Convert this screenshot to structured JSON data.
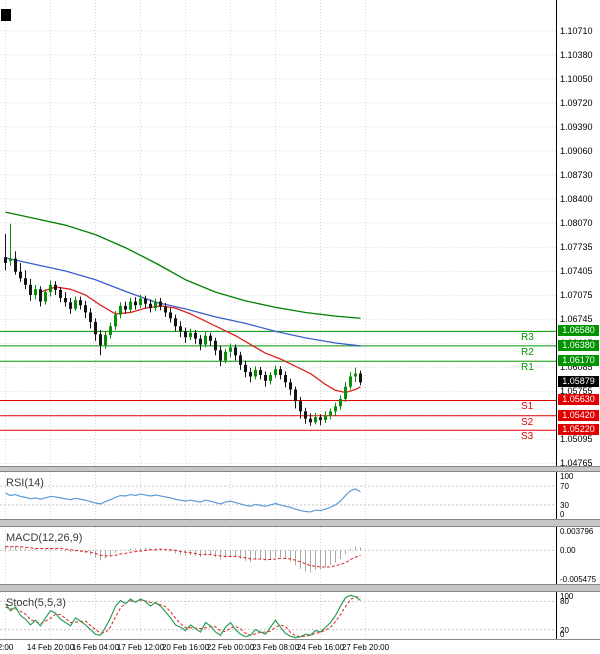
{
  "chart_data": {
    "type": "candlestick",
    "colors": {
      "background": "#ffffff",
      "grid": "#d9d9d9",
      "level_grid": "#c8c8c8",
      "axis_line": "#000000",
      "candle_up": "#0a8f0a",
      "candle_down": "#141414",
      "resistance": "#009500",
      "support": "#e00000",
      "current_badge": "#000000",
      "rsi_line": "#5b9bd5",
      "macd_hist": "#a8a8a8",
      "macd_signal": "#e02020",
      "stoch_k": "#2e9e5b",
      "stoch_d": "#e02020"
    },
    "price_axis": {
      "ylim": [
        1.04729,
        1.11136
      ],
      "ticks": [
        "1.10710",
        "1.10380",
        "1.10050",
        "1.09720",
        "1.09390",
        "1.09060",
        "1.08730",
        "1.08400",
        "1.08070",
        "1.07735",
        "1.07405",
        "1.07075",
        "1.06745",
        "1.06415",
        "1.06085",
        "1.05755",
        "1.05425",
        "1.05095",
        "1.04765"
      ]
    },
    "time_axis": {
      "labels": [
        "2:00",
        "14 Feb 20:00",
        "16 Feb 04:00",
        "17 Feb 12:00",
        "20 Feb 16:00",
        "22 Feb 00:00",
        "23 Feb 08:00",
        "24 Feb 16:00",
        "27 Feb 20:00"
      ],
      "indices": [
        0,
        9,
        18,
        27,
        36,
        45,
        54,
        63,
        72
      ]
    },
    "pivots": {
      "resistance": [
        {
          "name": "R3",
          "price": 1.0658,
          "display": "1.06580"
        },
        {
          "name": "R2",
          "price": 1.0638,
          "display": "1.06380"
        },
        {
          "name": "R1",
          "price": 1.0617,
          "display": "1.06170"
        }
      ],
      "support": [
        {
          "name": "S1",
          "price": 1.0563,
          "display": "1.05630"
        },
        {
          "name": "S2",
          "price": 1.0542,
          "display": "1.05420"
        },
        {
          "name": "S3",
          "price": 1.0522,
          "display": "1.05220"
        }
      ],
      "current": {
        "price": 1.05879,
        "display": "1.05879"
      }
    },
    "moving_averages": [
      {
        "name": "ma-slow-green",
        "color": "#008000",
        "points": [
          [
            0,
            1.0822
          ],
          [
            6,
            1.0813
          ],
          [
            12,
            1.0804
          ],
          [
            18,
            1.0791
          ],
          [
            24,
            1.0773
          ],
          [
            30,
            1.0752
          ],
          [
            36,
            1.0729
          ],
          [
            42,
            1.0712
          ],
          [
            48,
            1.07
          ],
          [
            54,
            1.0691
          ],
          [
            60,
            1.0684
          ],
          [
            66,
            1.0679
          ],
          [
            71,
            1.0676
          ]
        ]
      },
      {
        "name": "ma-mid-blue",
        "color": "#3a5fcd",
        "points": [
          [
            0,
            1.0759
          ],
          [
            6,
            1.075
          ],
          [
            12,
            1.0741
          ],
          [
            18,
            1.0729
          ],
          [
            24,
            1.0713
          ],
          [
            30,
            1.0698
          ],
          [
            36,
            1.0689
          ],
          [
            42,
            1.0678
          ],
          [
            48,
            1.0669
          ],
          [
            54,
            1.0658
          ],
          [
            60,
            1.0649
          ],
          [
            66,
            1.0642
          ],
          [
            71,
            1.0638
          ]
        ]
      },
      {
        "name": "ma-fast-red",
        "color": "#e02020",
        "points": [
          [
            7,
            1.0712
          ],
          [
            10,
            1.0719
          ],
          [
            13,
            1.0716
          ],
          [
            16,
            1.0708
          ],
          [
            19,
            1.0694
          ],
          [
            22,
            1.0682
          ],
          [
            25,
            1.0684
          ],
          [
            28,
            1.069
          ],
          [
            31,
            1.0693
          ],
          [
            34,
            1.069
          ],
          [
            37,
            1.0682
          ],
          [
            40,
            1.0672
          ],
          [
            43,
            1.0662
          ],
          [
            46,
            1.0652
          ],
          [
            49,
            1.064
          ],
          [
            52,
            1.0628
          ],
          [
            55,
            1.062
          ],
          [
            58,
            1.061
          ],
          [
            61,
            1.06
          ],
          [
            64,
            1.0585
          ],
          [
            66,
            1.0577
          ],
          [
            68,
            1.0574
          ],
          [
            70,
            1.0578
          ],
          [
            71,
            1.0582
          ]
        ]
      }
    ],
    "candles": [
      [
        1.076,
        1.0792,
        1.0742,
        1.0752
      ],
      [
        1.0755,
        1.0806,
        1.0748,
        1.0758
      ],
      [
        1.0758,
        1.0768,
        1.0736,
        1.074
      ],
      [
        1.074,
        1.0752,
        1.0726,
        1.0731
      ],
      [
        1.0731,
        1.0742,
        1.0716,
        1.0722
      ],
      [
        1.0722,
        1.073,
        1.07,
        1.0708
      ],
      [
        1.0708,
        1.0722,
        1.0702,
        1.0716
      ],
      [
        1.0716,
        1.072,
        1.0692,
        1.0699
      ],
      [
        1.0699,
        1.0716,
        1.0695,
        1.0712
      ],
      [
        1.0712,
        1.0728,
        1.0706,
        1.0722
      ],
      [
        1.0722,
        1.0727,
        1.0708,
        1.0715
      ],
      [
        1.0715,
        1.0719,
        1.0698,
        1.0704
      ],
      [
        1.0704,
        1.0712,
        1.0692,
        1.0698
      ],
      [
        1.0698,
        1.0704,
        1.0682,
        1.0689
      ],
      [
        1.0689,
        1.0706,
        1.0686,
        1.0701
      ],
      [
        1.0701,
        1.0706,
        1.0688,
        1.0694
      ],
      [
        1.0694,
        1.07,
        1.0676,
        1.0684
      ],
      [
        1.0684,
        1.069,
        1.0662,
        1.0671
      ],
      [
        1.0671,
        1.0676,
        1.0645,
        1.0654
      ],
      [
        1.0654,
        1.066,
        1.0625,
        1.0639
      ],
      [
        1.0639,
        1.0658,
        1.0634,
        1.0653
      ],
      [
        1.0653,
        1.067,
        1.0648,
        1.0665
      ],
      [
        1.0665,
        1.0686,
        1.066,
        1.0681
      ],
      [
        1.0681,
        1.0698,
        1.0676,
        1.0693
      ],
      [
        1.0693,
        1.0699,
        1.0682,
        1.0688
      ],
      [
        1.0688,
        1.0704,
        1.0684,
        1.0699
      ],
      [
        1.0699,
        1.0705,
        1.0688,
        1.0694
      ],
      [
        1.0694,
        1.0708,
        1.069,
        1.0703
      ],
      [
        1.0703,
        1.0707,
        1.069,
        1.0696
      ],
      [
        1.0696,
        1.0702,
        1.0684,
        1.069
      ],
      [
        1.069,
        1.0703,
        1.0686,
        1.0699
      ],
      [
        1.0699,
        1.0704,
        1.0687,
        1.0692
      ],
      [
        1.0692,
        1.0697,
        1.0678,
        1.0684
      ],
      [
        1.0684,
        1.069,
        1.067,
        1.0676
      ],
      [
        1.0676,
        1.0681,
        1.0658,
        1.0665
      ],
      [
        1.0665,
        1.0672,
        1.065,
        1.0658
      ],
      [
        1.0658,
        1.0663,
        1.0642,
        1.065
      ],
      [
        1.065,
        1.0662,
        1.0646,
        1.0656
      ],
      [
        1.0656,
        1.066,
        1.0641,
        1.0648
      ],
      [
        1.0648,
        1.0653,
        1.0632,
        1.064
      ],
      [
        1.064,
        1.0657,
        1.0636,
        1.0652
      ],
      [
        1.0652,
        1.0656,
        1.0638,
        1.0645
      ],
      [
        1.0645,
        1.0649,
        1.0625,
        1.0632
      ],
      [
        1.0632,
        1.0638,
        1.061,
        1.0618
      ],
      [
        1.0618,
        1.0634,
        1.0614,
        1.063
      ],
      [
        1.063,
        1.0641,
        1.0622,
        1.0636
      ],
      [
        1.0636,
        1.064,
        1.0618,
        1.0625
      ],
      [
        1.0625,
        1.063,
        1.0605,
        1.0612
      ],
      [
        1.0612,
        1.0618,
        1.0595,
        1.0602
      ],
      [
        1.0602,
        1.0608,
        1.0588,
        1.0596
      ],
      [
        1.0596,
        1.061,
        1.0592,
        1.0605
      ],
      [
        1.0605,
        1.0609,
        1.0592,
        1.0598
      ],
      [
        1.0598,
        1.0603,
        1.0582,
        1.059
      ],
      [
        1.059,
        1.0602,
        1.0585,
        1.0598
      ],
      [
        1.0598,
        1.0611,
        1.0594,
        1.0606
      ],
      [
        1.0606,
        1.061,
        1.0592,
        1.0598
      ],
      [
        1.0598,
        1.0603,
        1.0581,
        1.0588
      ],
      [
        1.0588,
        1.0593,
        1.057,
        1.0578
      ],
      [
        1.0578,
        1.0582,
        1.0552,
        1.0562
      ],
      [
        1.0562,
        1.0568,
        1.0538,
        1.0548
      ],
      [
        1.0548,
        1.0553,
        1.0531,
        1.0538
      ],
      [
        1.0538,
        1.0545,
        1.0528,
        1.0533
      ],
      [
        1.0533,
        1.0546,
        1.053,
        1.054
      ],
      [
        1.054,
        1.0544,
        1.0529,
        1.0536
      ],
      [
        1.0536,
        1.0548,
        1.0532,
        1.0542
      ],
      [
        1.0542,
        1.0552,
        1.0537,
        1.0548
      ],
      [
        1.0548,
        1.056,
        1.0542,
        1.0555
      ],
      [
        1.0555,
        1.057,
        1.055,
        1.0565
      ],
      [
        1.0565,
        1.0588,
        1.0561,
        1.0582
      ],
      [
        1.0582,
        1.0602,
        1.0578,
        1.0596
      ],
      [
        1.0596,
        1.0608,
        1.0588,
        1.06
      ],
      [
        1.06,
        1.0604,
        1.0584,
        1.0588
      ]
    ],
    "indicators": {
      "rsi": {
        "label": "RSI(14)",
        "range": [
          0,
          100
        ],
        "levels": [
          70,
          30
        ],
        "axis": [
          {
            "text": "100",
            "value": 100
          },
          {
            "text": "70",
            "value": 70
          },
          {
            "text": "30",
            "value": 30
          },
          {
            "text": "0",
            "value": 0
          }
        ],
        "values": [
          55,
          50,
          52,
          48,
          46,
          43,
          45,
          42,
          45,
          48,
          47,
          45,
          43,
          41,
          44,
          42,
          40,
          37,
          34,
          32,
          37,
          41,
          46,
          50,
          49,
          52,
          50,
          53,
          51,
          49,
          51,
          49,
          47,
          45,
          42,
          40,
          38,
          40,
          38,
          36,
          40,
          38,
          35,
          32,
          36,
          38,
          35,
          32,
          29,
          27,
          31,
          29,
          27,
          30,
          33,
          30,
          27,
          25,
          21,
          18,
          16,
          15,
          19,
          18,
          21,
          25,
          30,
          38,
          50,
          60,
          64,
          58
        ]
      },
      "macd": {
        "label": "MACD(12,26,9)",
        "range": [
          -0.005475,
          0.003796
        ],
        "axis": [
          {
            "text": "0.003796",
            "value": 0.003796
          },
          {
            "text": "0.00",
            "value": 0
          },
          {
            "text": "-0.005475",
            "value": -0.005475
          }
        ],
        "hist": [
          0.0008,
          0.0006,
          0.0007,
          0.0005,
          0.0003,
          0.0001,
          0.0002,
          0.0,
          0.0002,
          0.0004,
          0.0003,
          0.0001,
          -0.0001,
          -0.0003,
          -0.0002,
          -0.0003,
          -0.0005,
          -0.0008,
          -0.0012,
          -0.0016,
          -0.0013,
          -0.0009,
          -0.0004,
          0.0,
          0.0001,
          0.0003,
          0.0003,
          0.0004,
          0.0004,
          0.0003,
          0.0003,
          0.0002,
          0.0,
          -0.0002,
          -0.0005,
          -0.0007,
          -0.0009,
          -0.0008,
          -0.0009,
          -0.0011,
          -0.0008,
          -0.0008,
          -0.0011,
          -0.0015,
          -0.0012,
          -0.0009,
          -0.001,
          -0.0014,
          -0.0017,
          -0.0019,
          -0.0015,
          -0.0015,
          -0.0017,
          -0.0014,
          -0.0011,
          -0.0011,
          -0.0014,
          -0.0018,
          -0.0024,
          -0.003,
          -0.0034,
          -0.0036,
          -0.0032,
          -0.0031,
          -0.0028,
          -0.0024,
          -0.002,
          -0.0014,
          -0.0006,
          0.0002,
          0.0006,
          0.0005
        ],
        "signal": [
          0.0006,
          0.0006,
          0.0006,
          0.0006,
          0.0005,
          0.0004,
          0.0003,
          0.0003,
          0.0003,
          0.0003,
          0.0003,
          0.0003,
          0.0002,
          0.0001,
          0.0,
          -0.0001,
          -0.0002,
          -0.0003,
          -0.0005,
          -0.0008,
          -0.0009,
          -0.0009,
          -0.0008,
          -0.0006,
          -0.0005,
          -0.0003,
          -0.0002,
          -0.0001,
          0.0,
          0.0001,
          0.0001,
          0.0002,
          0.0001,
          0.0001,
          0.0,
          -0.0002,
          -0.0003,
          -0.0004,
          -0.0005,
          -0.0007,
          -0.0007,
          -0.0007,
          -0.0008,
          -0.0009,
          -0.001,
          -0.001,
          -0.001,
          -0.0011,
          -0.0012,
          -0.0014,
          -0.0014,
          -0.0014,
          -0.0015,
          -0.0015,
          -0.0014,
          -0.0013,
          -0.0013,
          -0.0014,
          -0.0016,
          -0.0019,
          -0.0022,
          -0.0025,
          -0.0026,
          -0.0027,
          -0.0027,
          -0.0027,
          -0.0025,
          -0.0023,
          -0.002,
          -0.0015,
          -0.0011,
          -0.0008
        ]
      },
      "stoch": {
        "label": "Stoch(5,5,3)",
        "range": [
          0,
          100
        ],
        "levels": [
          80,
          20
        ],
        "axis": [
          {
            "text": "100",
            "value": 100
          },
          {
            "text": "80",
            "value": 80
          },
          {
            "text": "20",
            "value": 20
          },
          {
            "text": "0",
            "value": 0
          }
        ],
        "k": [
          75,
          60,
          68,
          50,
          42,
          30,
          40,
          28,
          45,
          60,
          55,
          42,
          35,
          28,
          45,
          38,
          30,
          20,
          10,
          8,
          25,
          45,
          70,
          82,
          75,
          85,
          78,
          85,
          80,
          70,
          78,
          70,
          58,
          45,
          30,
          25,
          18,
          30,
          22,
          15,
          35,
          28,
          15,
          8,
          25,
          35,
          20,
          10,
          5,
          8,
          20,
          15,
          10,
          25,
          40,
          25,
          12,
          6,
          3,
          5,
          10,
          8,
          18,
          15,
          25,
          35,
          50,
          70,
          88,
          93,
          90,
          82
        ],
        "d": [
          68,
          64,
          64,
          59,
          53,
          41,
          37,
          33,
          38,
          44,
          53,
          52,
          44,
          35,
          36,
          37,
          38,
          29,
          20,
          13,
          14,
          26,
          47,
          66,
          76,
          81,
          79,
          83,
          81,
          78,
          76,
          73,
          69,
          58,
          44,
          33,
          24,
          24,
          23,
          22,
          24,
          26,
          26,
          17,
          16,
          23,
          27,
          22,
          12,
          8,
          11,
          14,
          15,
          17,
          25,
          30,
          26,
          14,
          7,
          5,
          6,
          8,
          12,
          14,
          19,
          25,
          37,
          52,
          69,
          84,
          90,
          88
        ]
      }
    }
  }
}
